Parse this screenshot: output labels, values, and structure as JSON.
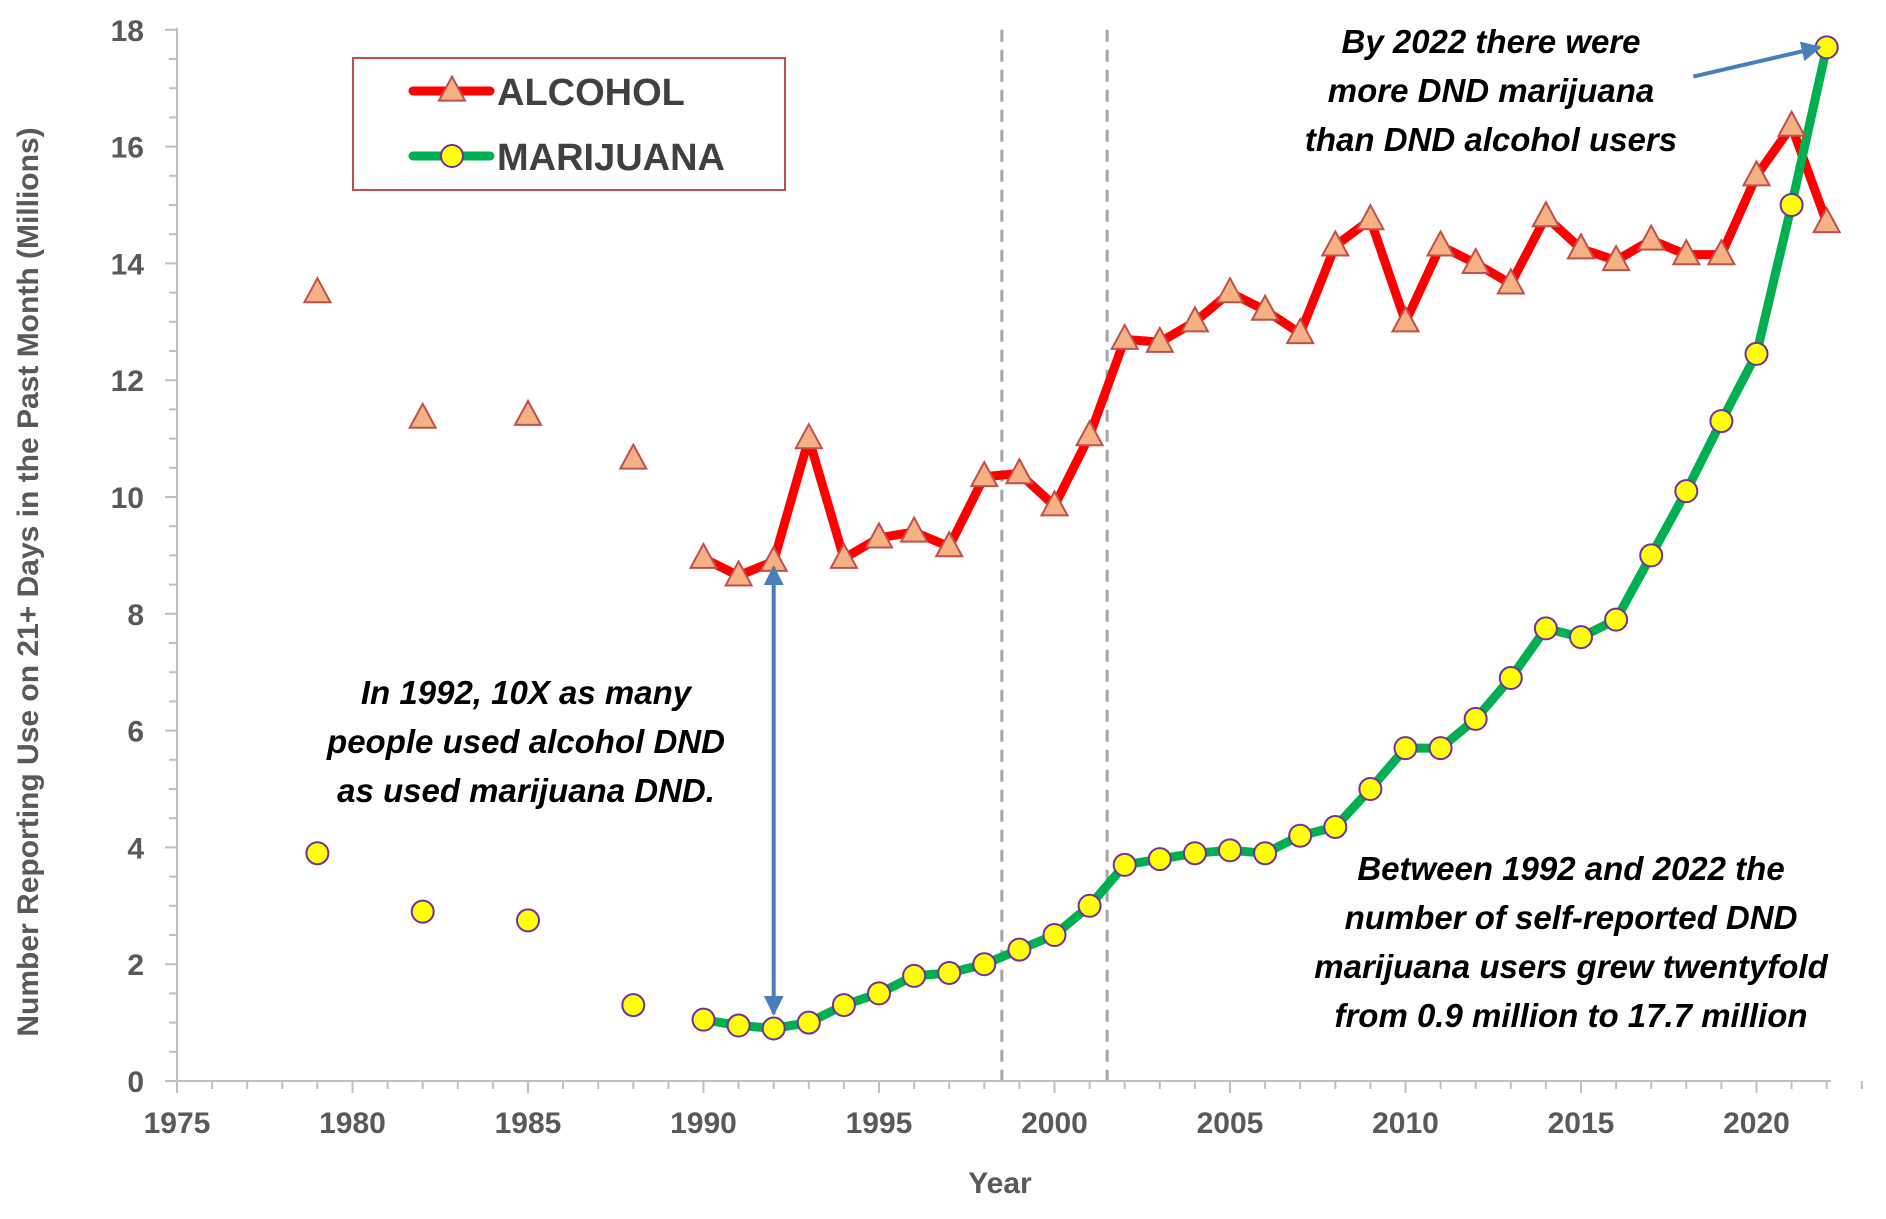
{
  "chart_data": {
    "type": "line",
    "xlabel": "Year",
    "ylabel": "Number Reporting Use on 21+ Days in the Past Month (Millions)",
    "xlim": [
      1975,
      2023
    ],
    "ylim": [
      0,
      18
    ],
    "x_ticks": [
      1975,
      1980,
      1985,
      1990,
      1995,
      2000,
      2005,
      2010,
      2015,
      2020
    ],
    "y_ticks": [
      0,
      2,
      4,
      6,
      8,
      10,
      12,
      14,
      16,
      18
    ],
    "grid": false,
    "legend_position": "top-left",
    "vertical_reference_lines": [
      1998.5,
      2001.5
    ],
    "series": [
      {
        "name": "ALCOHOL",
        "line_color": "#ff0000",
        "marker": "triangle",
        "marker_fill": "#f4b183",
        "marker_stroke": "#c0504d",
        "unconnected_points": [
          {
            "x": 1979,
            "y": 13.5
          },
          {
            "x": 1982,
            "y": 11.35
          },
          {
            "x": 1985,
            "y": 11.4
          },
          {
            "x": 1988,
            "y": 10.65
          }
        ],
        "points": [
          {
            "x": 1990,
            "y": 8.95
          },
          {
            "x": 1991,
            "y": 8.65
          },
          {
            "x": 1992,
            "y": 8.9
          },
          {
            "x": 1993,
            "y": 11.0
          },
          {
            "x": 1994,
            "y": 8.95
          },
          {
            "x": 1995,
            "y": 9.3
          },
          {
            "x": 1996,
            "y": 9.4
          },
          {
            "x": 1997,
            "y": 9.15
          },
          {
            "x": 1998,
            "y": 10.35
          },
          {
            "x": 1999,
            "y": 10.4
          },
          {
            "x": 2000,
            "y": 9.85
          },
          {
            "x": 2001,
            "y": 11.05
          },
          {
            "x": 2002,
            "y": 12.7
          },
          {
            "x": 2003,
            "y": 12.65
          },
          {
            "x": 2004,
            "y": 13.0
          },
          {
            "x": 2005,
            "y": 13.5
          },
          {
            "x": 2006,
            "y": 13.2
          },
          {
            "x": 2007,
            "y": 12.8
          },
          {
            "x": 2008,
            "y": 14.3
          },
          {
            "x": 2009,
            "y": 14.75
          },
          {
            "x": 2010,
            "y": 13.0
          },
          {
            "x": 2011,
            "y": 14.3
          },
          {
            "x": 2012,
            "y": 14.0
          },
          {
            "x": 2013,
            "y": 13.65
          },
          {
            "x": 2014,
            "y": 14.8
          },
          {
            "x": 2015,
            "y": 14.25
          },
          {
            "x": 2016,
            "y": 14.05
          },
          {
            "x": 2017,
            "y": 14.4
          },
          {
            "x": 2018,
            "y": 14.15
          },
          {
            "x": 2019,
            "y": 14.15
          },
          {
            "x": 2020,
            "y": 15.5
          },
          {
            "x": 2021,
            "y": 16.35
          },
          {
            "x": 2022,
            "y": 14.7
          }
        ]
      },
      {
        "name": "MARIJUANA",
        "line_color": "#00b050",
        "marker": "circle",
        "marker_fill": "#ffff00",
        "marker_stroke": "#7030a0",
        "unconnected_points": [
          {
            "x": 1979,
            "y": 3.9
          },
          {
            "x": 1982,
            "y": 2.9
          },
          {
            "x": 1985,
            "y": 2.75
          },
          {
            "x": 1988,
            "y": 1.3
          }
        ],
        "points": [
          {
            "x": 1990,
            "y": 1.05
          },
          {
            "x": 1991,
            "y": 0.95
          },
          {
            "x": 1992,
            "y": 0.9
          },
          {
            "x": 1993,
            "y": 1.0
          },
          {
            "x": 1994,
            "y": 1.3
          },
          {
            "x": 1995,
            "y": 1.5
          },
          {
            "x": 1996,
            "y": 1.8
          },
          {
            "x": 1997,
            "y": 1.85
          },
          {
            "x": 1998,
            "y": 2.0
          },
          {
            "x": 1999,
            "y": 2.25
          },
          {
            "x": 2000,
            "y": 2.5
          },
          {
            "x": 2001,
            "y": 3.0
          },
          {
            "x": 2002,
            "y": 3.7
          },
          {
            "x": 2003,
            "y": 3.8
          },
          {
            "x": 2004,
            "y": 3.9
          },
          {
            "x": 2005,
            "y": 3.95
          },
          {
            "x": 2006,
            "y": 3.9
          },
          {
            "x": 2007,
            "y": 4.2
          },
          {
            "x": 2008,
            "y": 4.35
          },
          {
            "x": 2009,
            "y": 5.0
          },
          {
            "x": 2010,
            "y": 5.7
          },
          {
            "x": 2011,
            "y": 5.7
          },
          {
            "x": 2012,
            "y": 6.2
          },
          {
            "x": 2013,
            "y": 6.9
          },
          {
            "x": 2014,
            "y": 7.75
          },
          {
            "x": 2015,
            "y": 7.6
          },
          {
            "x": 2016,
            "y": 7.9
          },
          {
            "x": 2017,
            "y": 9.0
          },
          {
            "x": 2018,
            "y": 10.1
          },
          {
            "x": 2019,
            "y": 11.3
          },
          {
            "x": 2020,
            "y": 12.45
          },
          {
            "x": 2021,
            "y": 15.0
          },
          {
            "x": 2022,
            "y": 17.7
          }
        ]
      }
    ],
    "annotations": [
      {
        "id": "1992",
        "lines": [
          "In 1992, 10X as many",
          "people used alcohol DND",
          "as used marijuana DND."
        ]
      },
      {
        "id": "2022",
        "lines": [
          "By 2022  there were",
          "more DND marijuana",
          "than DND alcohol users"
        ]
      },
      {
        "id": "growth",
        "lines": [
          "Between 1992 and 2022 the",
          "number of self-reported DND",
          "marijuana users grew twentyfold",
          "from 0.9 million to 17.7 million"
        ]
      }
    ],
    "annotation_arrows": [
      {
        "from": {
          "x": 1992,
          "y": 8.8
        },
        "to": {
          "x": 1992,
          "y": 1.15
        },
        "double_headed": true
      },
      {
        "from": {
          "x": 2018.2,
          "y": 17.2
        },
        "to": {
          "x": 2021.8,
          "y": 17.7
        },
        "double_headed": false
      }
    ],
    "arrow_color": "#4a7ebb"
  }
}
